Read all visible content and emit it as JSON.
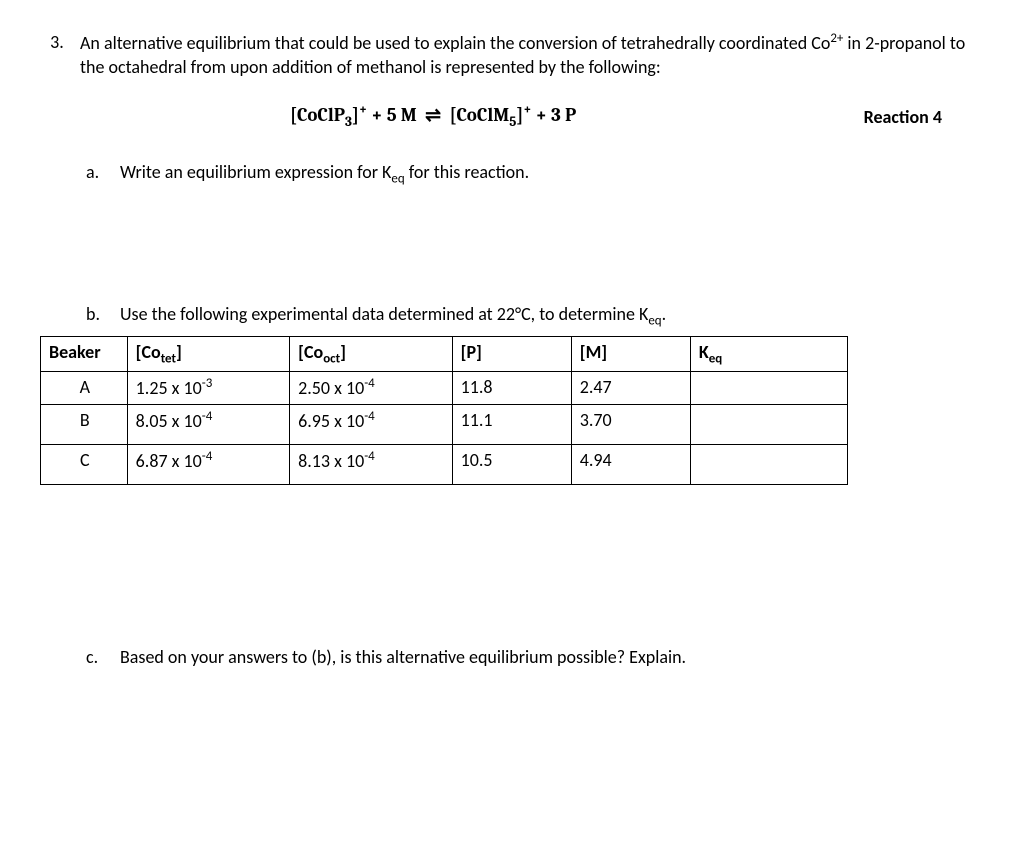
{
  "question_number": "3.",
  "intro_html": "An alternative equilibrium that could be used to explain the conversion of tetrahedrally coordinated Co<sup>2+</sup> in 2-propanol to the octahedral from upon addition of methanol is represented by the following:",
  "equation_html": "[CoClP<sub>3</sub>]<sup>+</sup> + 5 M &nbsp;⇌&nbsp; [CoClM<sub>5</sub>]<sup>+</sup> + 3 P",
  "reaction_label": "Reaction 4",
  "part_a": {
    "letter": "a.",
    "text_html": "Write an equilibrium expression for K<sub>eq</sub> for this reaction."
  },
  "part_b": {
    "letter": "b.",
    "text_html": "Use the following experimental data determined at 22°C, to determine K<sub>eq</sub>."
  },
  "part_c": {
    "letter": "c.",
    "text_html": "Based on your answers to (b), is this alternative equilibrium possible? Explain."
  },
  "table": {
    "headers": {
      "beaker": "Beaker",
      "cotet_html": "[Co<sub>tet</sub>]",
      "cooct_html": "[Co<sub>oct</sub>]",
      "p": "[P]",
      "m": "[M]",
      "keq_html": "K<sub>eq</sub>"
    },
    "row_a": {
      "beaker": "A",
      "cotet_html": "1.25 x 10<sup>-3</sup>",
      "cooct_html": "2.50 x 10<sup>-4</sup>",
      "p": "11.8",
      "m": "2.47",
      "keq": ""
    },
    "row_b": {
      "beaker": "B",
      "cotet_html": "8.05 x 10<sup>-4</sup>",
      "cooct_html": "6.95 x 10<sup>-4</sup>",
      "p": "11.1",
      "m": "3.70",
      "keq": ""
    },
    "row_c": {
      "beaker": "C",
      "cotet_html": "6.87 x 10<sup>-4</sup>",
      "cooct_html": "8.13 x 10<sup>-4</sup>",
      "p": "10.5",
      "m": "4.94",
      "keq": ""
    }
  },
  "colors": {
    "text": "#000000",
    "bg": "#ffffff",
    "border": "#000000"
  }
}
